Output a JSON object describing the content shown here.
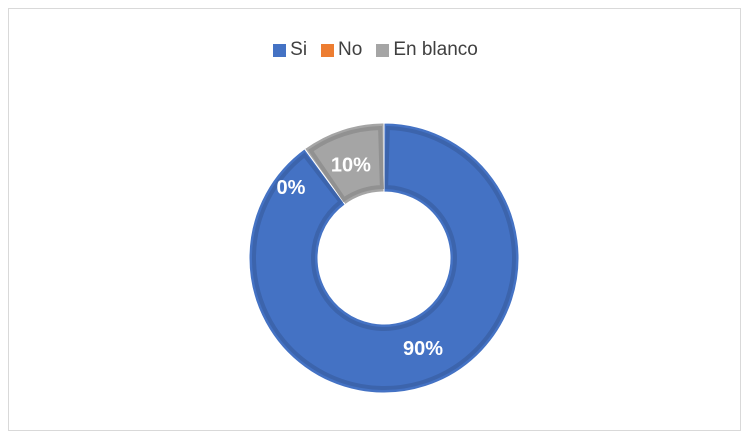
{
  "chart_data": {
    "type": "pie",
    "variant": "doughnut",
    "categories": [
      "Si",
      "No",
      "En blanco"
    ],
    "values": [
      90,
      0,
      10
    ],
    "data_labels": [
      "90%",
      "0%",
      "10%"
    ],
    "colors": [
      "#4472C4",
      "#ED7D31",
      "#A5A5A5"
    ],
    "legend_position": "top",
    "title": ""
  }
}
